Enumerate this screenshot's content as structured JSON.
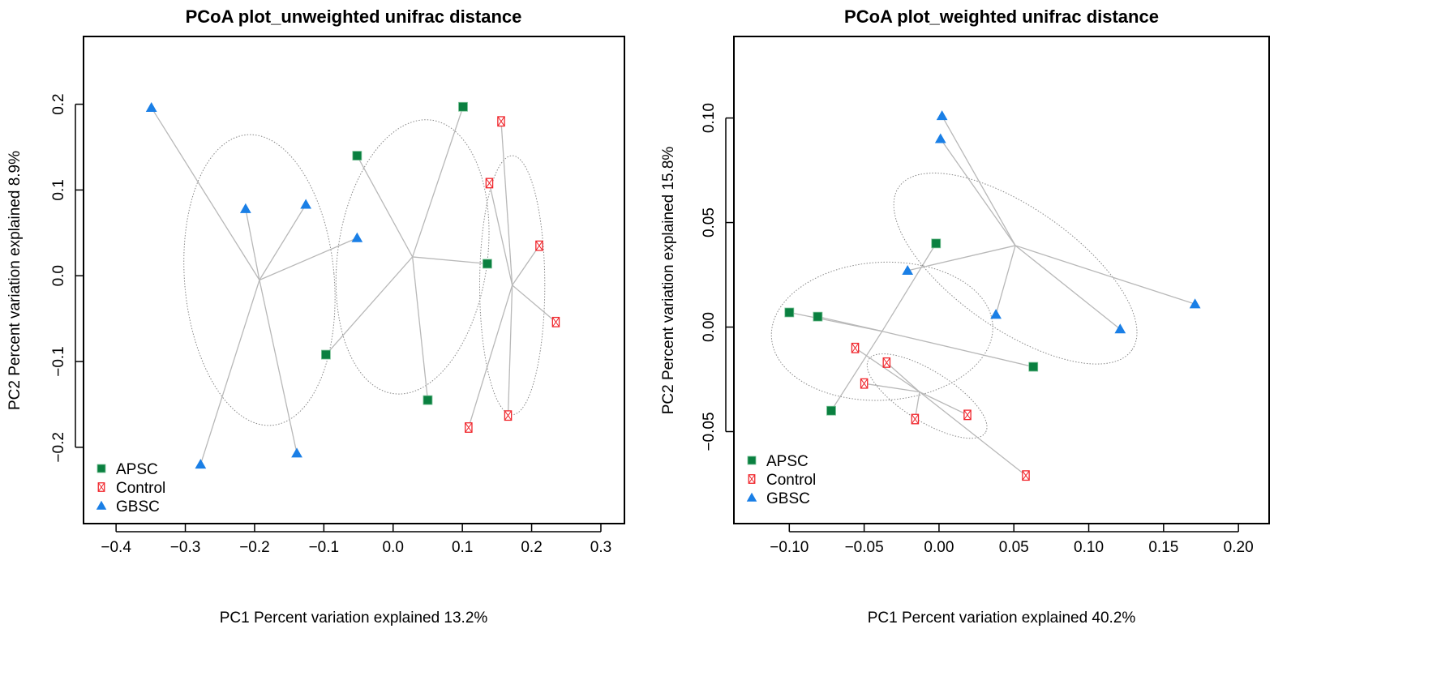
{
  "colors": {
    "APSC": "#0a8040",
    "Control": "#f0262c",
    "GBSC": "#1a7fe6",
    "spider": "#b8b8b8",
    "ellipse": "#888888"
  },
  "chart_data": [
    {
      "type": "scatter",
      "title": "PCoA plot_unweighted unifrac distance",
      "xlabel": "PC1 Percent variation explained 13.2%",
      "ylabel": "PC2 Percent variation explained 8.9%",
      "xlim": [
        -0.447,
        0.334
      ],
      "ylim": [
        -0.289,
        0.279
      ],
      "xticks": [
        -0.4,
        -0.3,
        -0.2,
        -0.1,
        0.0,
        0.1,
        0.2,
        0.3
      ],
      "xtick_labels": [
        "−0.4",
        "−0.3",
        "−0.2",
        "−0.1",
        "0.0",
        "0.1",
        "0.2",
        "0.3"
      ],
      "yticks": [
        -0.2,
        -0.1,
        0.0,
        0.1,
        0.2
      ],
      "ytick_labels": [
        "−0.2",
        "−0.1",
        "0.0",
        "0.1",
        "0.2"
      ],
      "legend": {
        "position": "bottom-left",
        "entries": [
          "APSC",
          "Control",
          "GBSC"
        ]
      },
      "series": [
        {
          "name": "APSC",
          "marker": "square",
          "centroid": [
            0.028,
            0.022
          ],
          "ellipse": {
            "cx": 0.028,
            "cy": 0.022,
            "a": 0.108,
            "b": 0.161,
            "angle": 8
          },
          "points": [
            [
              0.101,
              0.197
            ],
            [
              -0.052,
              0.14
            ],
            [
              0.136,
              0.014
            ],
            [
              -0.097,
              -0.092
            ],
            [
              0.05,
              -0.145
            ]
          ]
        },
        {
          "name": "Control",
          "marker": "crossbox",
          "centroid": [
            0.172,
            -0.011
          ],
          "ellipse": {
            "cx": 0.172,
            "cy": -0.011,
            "a": 0.047,
            "b": 0.151,
            "angle": 0
          },
          "points": [
            [
              0.156,
              0.18
            ],
            [
              0.139,
              0.108
            ],
            [
              0.211,
              0.035
            ],
            [
              0.235,
              -0.054
            ],
            [
              0.166,
              -0.163
            ],
            [
              0.109,
              -0.177
            ]
          ]
        },
        {
          "name": "GBSC",
          "marker": "triangle",
          "centroid": [
            -0.193,
            -0.005
          ],
          "ellipse": {
            "cx": -0.193,
            "cy": -0.005,
            "a": 0.108,
            "b": 0.17,
            "angle": -5
          },
          "points": [
            [
              -0.349,
              0.196
            ],
            [
              -0.213,
              0.078
            ],
            [
              -0.126,
              0.083
            ],
            [
              -0.052,
              0.044
            ],
            [
              -0.278,
              -0.22
            ],
            [
              -0.139,
              -0.207
            ]
          ]
        }
      ]
    },
    {
      "type": "scatter",
      "title": "PCoA plot_weighted unifrac distance",
      "xlabel": "PC1 Percent variation explained 40.2%",
      "ylabel": "PC2 Percent variation explained 15.8%",
      "xlim": [
        -0.137,
        0.2205
      ],
      "ylim": [
        -0.094,
        0.139
      ],
      "xticks": [
        -0.1,
        -0.05,
        0.0,
        0.05,
        0.1,
        0.15,
        0.2
      ],
      "xtick_labels": [
        "−0.10",
        "−0.05",
        "0.00",
        "0.05",
        "0.10",
        "0.15",
        "0.20"
      ],
      "yticks": [
        -0.05,
        0.0,
        0.05,
        0.1
      ],
      "ytick_labels": [
        "−0.05",
        "0.00",
        "0.05",
        "0.10"
      ],
      "legend": {
        "position": "bottom-left",
        "entries": [
          "APSC",
          "Control",
          "GBSC"
        ]
      },
      "series": [
        {
          "name": "APSC",
          "marker": "square",
          "centroid": [
            -0.038,
            -0.002
          ],
          "ellipse": {
            "cx": -0.038,
            "cy": -0.002,
            "a": 0.074,
            "b": 0.033,
            "angle": -3
          },
          "points": [
            [
              -0.1,
              0.007
            ],
            [
              -0.081,
              0.005
            ],
            [
              -0.002,
              0.04
            ],
            [
              0.063,
              -0.019
            ],
            [
              -0.072,
              -0.04
            ]
          ]
        },
        {
          "name": "Control",
          "marker": "crossbox",
          "centroid": [
            -0.013,
            -0.031
          ],
          "ellipse": {
            "cx": -0.008,
            "cy": -0.033,
            "a": 0.046,
            "b": 0.012,
            "angle": 32
          },
          "points": [
            [
              -0.056,
              -0.01
            ],
            [
              -0.035,
              -0.017
            ],
            [
              -0.05,
              -0.027
            ],
            [
              -0.016,
              -0.044
            ],
            [
              0.019,
              -0.042
            ],
            [
              0.058,
              -0.071
            ]
          ]
        },
        {
          "name": "GBSC",
          "marker": "triangle",
          "centroid": [
            0.051,
            0.039
          ],
          "ellipse": {
            "cx": 0.051,
            "cy": 0.028,
            "a": 0.095,
            "b": 0.029,
            "angle": 35
          },
          "points": [
            [
              0.002,
              0.101
            ],
            [
              0.001,
              0.09
            ],
            [
              -0.021,
              0.027
            ],
            [
              0.038,
              0.006
            ],
            [
              0.121,
              -0.001
            ],
            [
              0.171,
              0.011
            ]
          ]
        }
      ]
    }
  ]
}
